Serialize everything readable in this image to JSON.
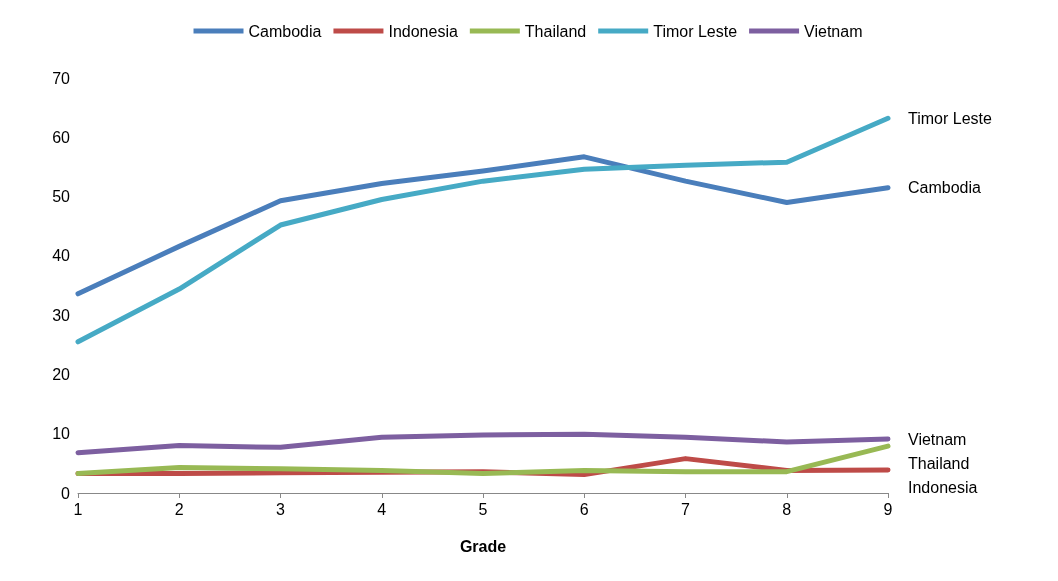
{
  "chart_data": {
    "type": "line",
    "xlabel": "Grade",
    "categories": [
      "1",
      "2",
      "3",
      "4",
      "5",
      "6",
      "7",
      "8",
      "9"
    ],
    "ylim": [
      0,
      70
    ],
    "yticks": [
      0,
      10,
      20,
      30,
      40,
      50,
      60,
      70
    ],
    "grid": false,
    "legend": "top",
    "marker": "none",
    "series": [
      {
        "name": "Cambodia",
        "color": "#4a7ebb",
        "values": [
          33.6,
          41.6,
          49.3,
          52.2,
          54.3,
          56.7,
          52.6,
          49.0,
          51.5
        ]
      },
      {
        "name": "Indonesia",
        "color": "#be4b48",
        "values": [
          3.3,
          3.3,
          3.4,
          null,
          3.6,
          3.1,
          5.8,
          3.8,
          3.9
        ]
      },
      {
        "name": "Thailand",
        "color": "#98b954",
        "values": [
          3.3,
          4.3,
          4.1,
          3.8,
          3.3,
          3.8,
          3.6,
          3.6,
          7.9
        ]
      },
      {
        "name": "Timor Leste",
        "color": "#46aac5",
        "values": [
          25.5,
          34.4,
          45.2,
          49.5,
          52.6,
          54.6,
          55.3,
          55.8,
          63.2
        ]
      },
      {
        "name": "Vietnam",
        "color": "#7d5fa0",
        "values": [
          6.8,
          8.0,
          7.7,
          9.4,
          9.8,
          9.9,
          9.4,
          8.6,
          9.1
        ]
      }
    ]
  }
}
